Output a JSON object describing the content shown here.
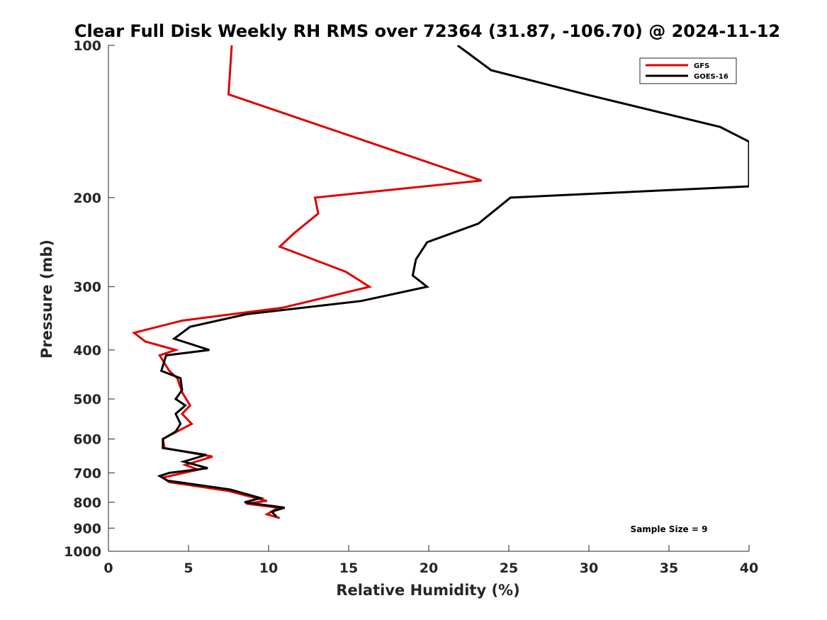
{
  "chart_data": {
    "type": "line",
    "title": "Clear Full Disk Weekly RH RMS over 72364 (31.87, -106.70) @ 2024-11-12",
    "xlabel": "Relative Humidity (%)",
    "ylabel": "Pressure (mb)",
    "xlim": [
      0,
      40
    ],
    "ylim": [
      100,
      1000
    ],
    "yscale": "log",
    "y_reversed": true,
    "x_ticks": [
      "0",
      "5",
      "10",
      "15",
      "20",
      "25",
      "30",
      "35",
      "40"
    ],
    "y_ticks": [
      "100",
      "200",
      "300",
      "400",
      "500",
      "600",
      "700",
      "800",
      "900",
      "1000"
    ],
    "grid": false,
    "legend_position": "top-right",
    "annotation": "Sample Size = 9",
    "series": [
      {
        "name": "GFS",
        "color": "#e00000",
        "x": [
          7.7,
          7.5,
          23.3,
          12.9,
          13.1,
          11.6,
          10.7,
          14.8,
          16.3,
          10.9,
          4.6,
          1.6,
          2.3,
          4.2,
          3.2,
          3.8,
          4.3,
          4.6,
          5.1,
          4.6,
          5.2,
          3.4,
          3.5,
          6.5,
          4.8,
          5.6,
          3.4,
          3.8,
          7.5,
          9.9,
          8.6,
          10.6,
          9.9,
          10.7
        ],
        "y": [
          100,
          125,
          185,
          200,
          215,
          235,
          250,
          280,
          300,
          330,
          350,
          370,
          385,
          400,
          410,
          440,
          455,
          485,
          515,
          535,
          560,
          600,
          625,
          650,
          675,
          690,
          715,
          730,
          760,
          795,
          805,
          820,
          845,
          860
        ]
      },
      {
        "name": "GOES-16",
        "color": "#000000",
        "x": [
          21.8,
          23.9,
          29.8,
          38.2,
          40.0,
          40.0,
          25.1,
          23.1,
          19.9,
          19.2,
          19.0,
          19.9,
          15.8,
          8.6,
          5.1,
          4.1,
          6.3,
          3.6,
          3.3,
          4.5,
          4.6,
          4.2,
          4.8,
          4.2,
          4.5,
          4.2,
          3.4,
          3.4,
          6.1,
          4.7,
          6.2,
          3.8,
          3.2,
          3.7,
          7.6,
          9.5,
          8.5,
          11.0,
          10.2,
          10.5
        ],
        "y": [
          100,
          112,
          125,
          145,
          155,
          190,
          200,
          225,
          245,
          265,
          285,
          300,
          320,
          340,
          360,
          380,
          400,
          410,
          440,
          455,
          480,
          500,
          515,
          535,
          560,
          580,
          600,
          625,
          645,
          665,
          685,
          700,
          710,
          725,
          755,
          785,
          800,
          820,
          835,
          855
        ]
      }
    ]
  }
}
